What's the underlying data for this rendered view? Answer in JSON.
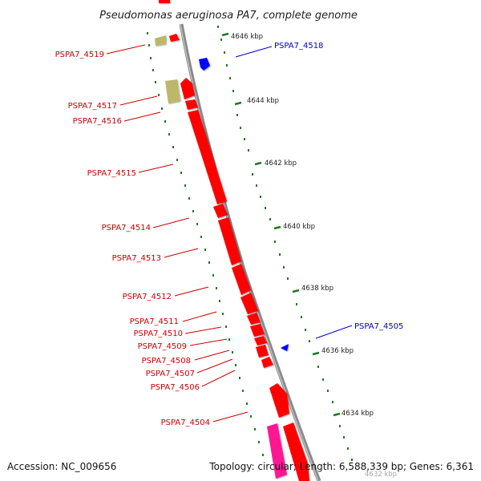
{
  "title": "Pseudomonas aeruginosa PA7, complete genome",
  "footer": {
    "accession": "Accession: NC_009656",
    "summary": "Topology: circular; Length: 6,588,339 bp; Genes: 6,361"
  },
  "colors": {
    "backbone": "#8a8a8a",
    "tick": "#1e7a1e",
    "forward_label": "#cc0000",
    "reverse_label": "#0000cc",
    "gene_red": "#ff0000",
    "gene_blue": "#0000ff",
    "gene_khaki": "#bdb76b",
    "gene_pink": "#ff1493"
  },
  "kbp_labels": [
    "4646 kbp",
    "4644 kbp",
    "4642 kbp",
    "4640 kbp",
    "4638 kbp",
    "4636 kbp",
    "4634 kbp",
    "4632 kbp"
  ],
  "forward_labels": [
    "PSPA7_4519",
    "PSPA7_4517",
    "PSPA7_4516",
    "PSPA7_4515",
    "PSPA7_4514",
    "PSPA7_4513",
    "PSPA7_4512",
    "PSPA7_4511",
    "PSPA7_4510",
    "PSPA7_4509",
    "PSPA7_4508",
    "PSPA7_4507",
    "PSPA7_4506",
    "PSPA7_4504"
  ],
  "reverse_labels": [
    "PSPA7_4518",
    "PSPA7_4505"
  ]
}
